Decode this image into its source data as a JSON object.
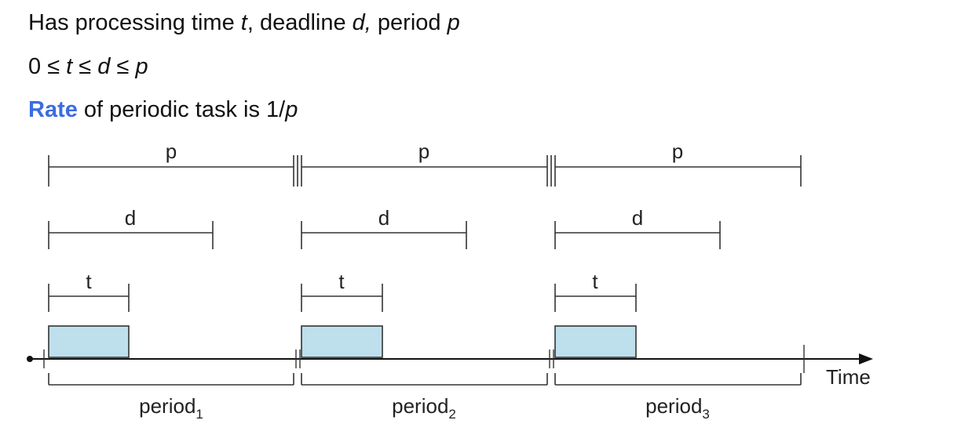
{
  "bullets": {
    "line1": {
      "a": "Has processing time ",
      "t": "t",
      "b": ", deadline ",
      "d": "d,",
      "c": " period ",
      "p": "p"
    },
    "line2": {
      "zero": "0 ",
      "le1": "≤ ",
      "t": "t",
      "le2": " ≤ ",
      "d": "d",
      "le3": " ≤ ",
      "p": "p"
    },
    "line3": {
      "rate": "Rate",
      "rest": " of periodic task is 1/",
      "p": "p"
    }
  },
  "diagram": {
    "p_label": "p",
    "d_label": "d",
    "t_label": "t",
    "time_label": "Time",
    "periods": [
      {
        "name": "period",
        "sub": "1"
      },
      {
        "name": "period",
        "sub": "2"
      },
      {
        "name": "period",
        "sub": "3"
      }
    ],
    "colors": {
      "task_fill": "#bde0ec",
      "line": "#333333",
      "accent": "#3b6de0"
    }
  }
}
